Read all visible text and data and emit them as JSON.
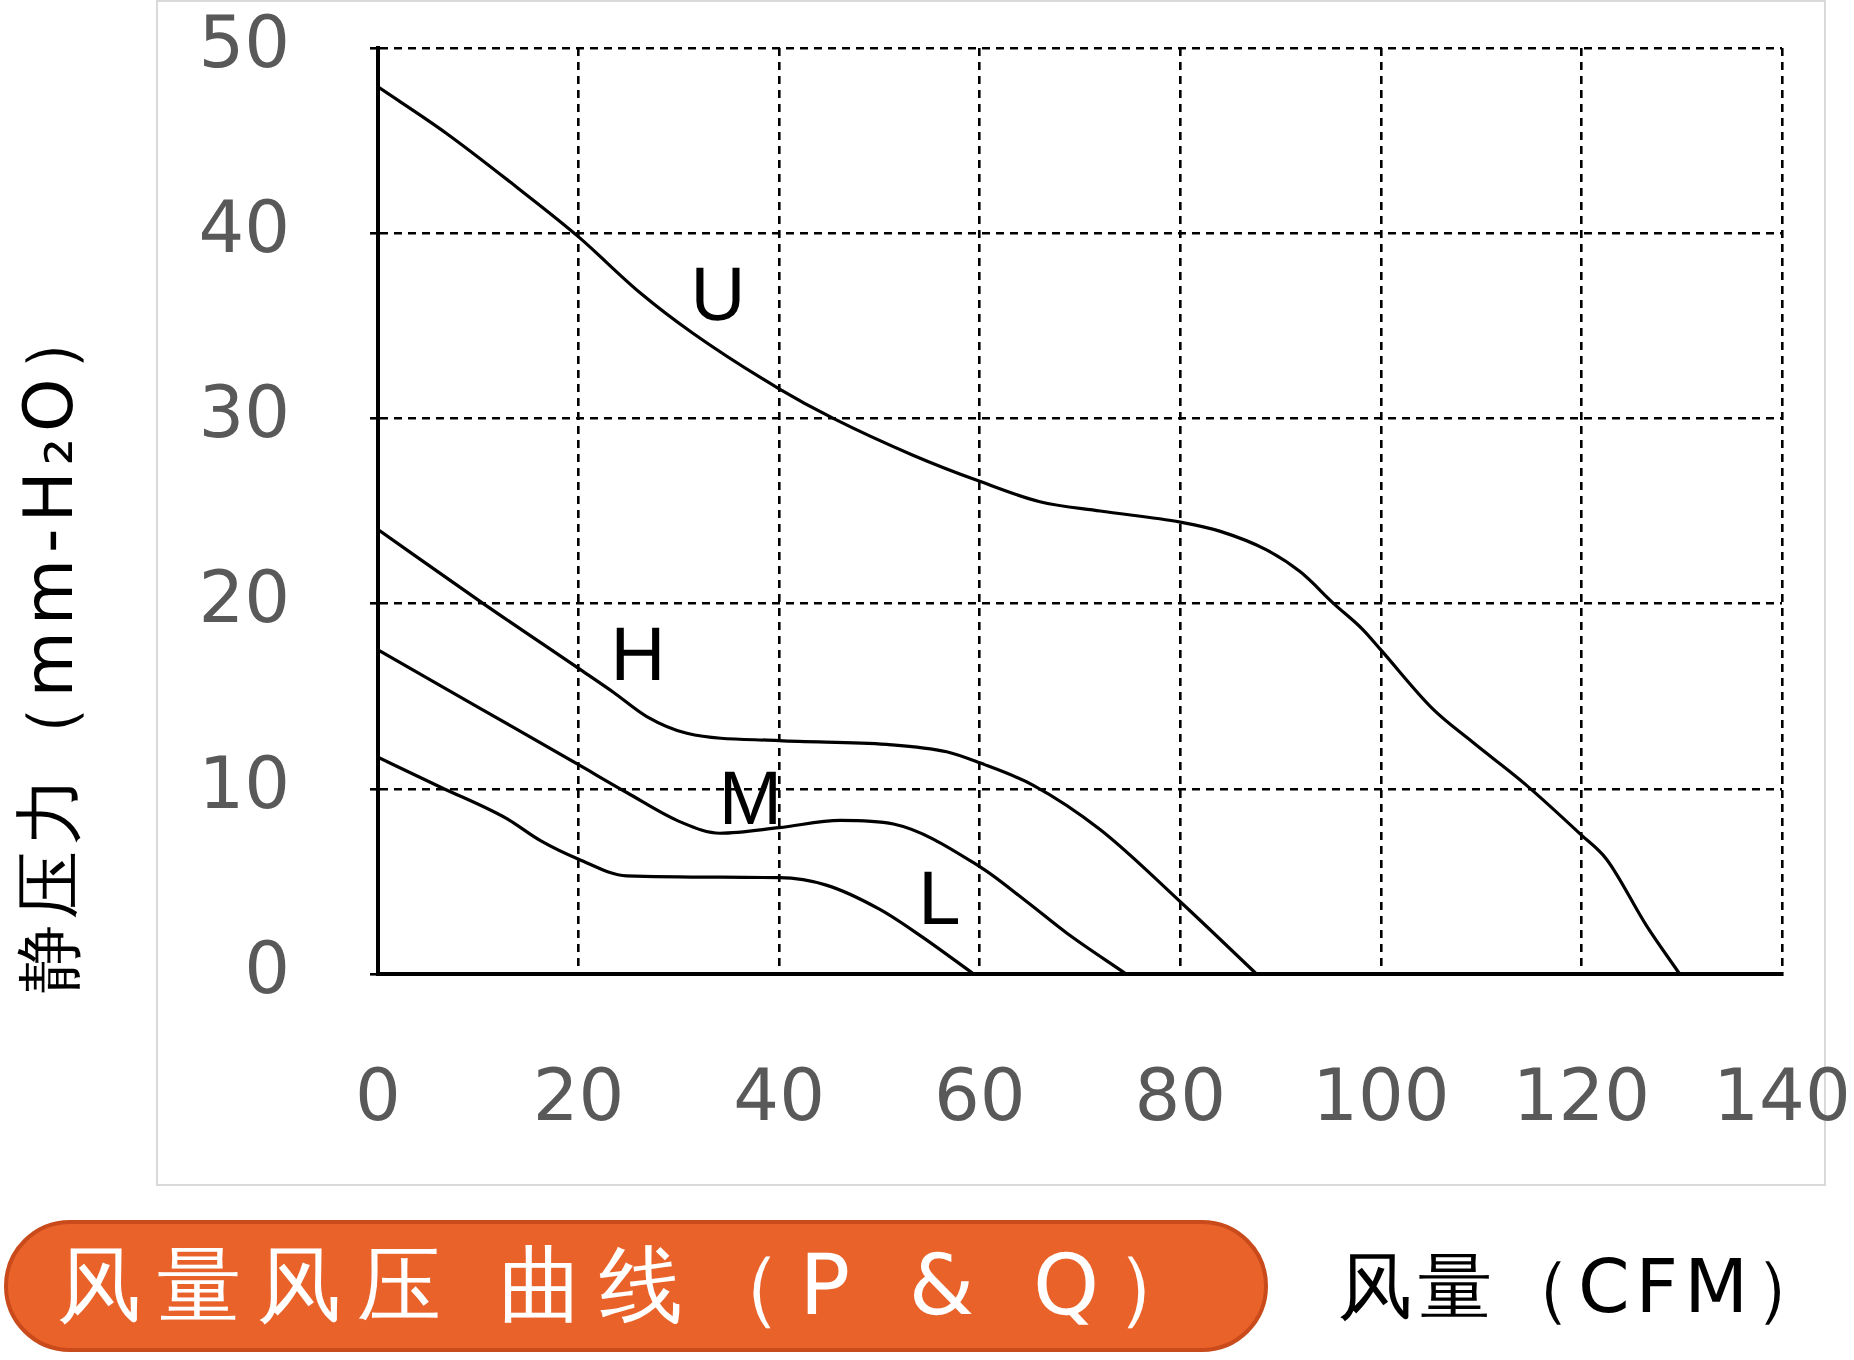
{
  "chart_data": {
    "type": "line",
    "title": "风量风压 曲线（P & Q）",
    "xlabel": "风量（CFM）",
    "ylabel": "静压力（mm-H₂O）",
    "xlim": [
      0,
      140
    ],
    "xticks": [
      0,
      20,
      40,
      60,
      80,
      100,
      120,
      140
    ],
    "ylim": [
      0,
      50
    ],
    "yticks": [
      0,
      10,
      20,
      30,
      40,
      50
    ],
    "grid": true,
    "legend": false,
    "marker": "none",
    "line_style": "solid",
    "series": [
      {
        "name": "U",
        "color": "#000000",
        "x": [
          0,
          6.8,
          14.5,
          20,
          26.1,
          31.4,
          40,
          45.4,
          53.4,
          60,
          66,
          72,
          80,
          84,
          88.6,
          92,
          95.3,
          98.2,
          100,
          105.2,
          109.2,
          114.5,
          120,
          122.5,
          126.5,
          129.8
        ],
        "values": [
          47.9,
          45.4,
          42.2,
          39.8,
          36.8,
          34.6,
          31.6,
          30,
          28,
          26.6,
          25.5,
          25,
          24.4,
          23.9,
          22.9,
          21.7,
          20,
          18.6,
          17.5,
          14.3,
          12.5,
          10.2,
          7.5,
          6.2,
          2.6,
          0
        ]
      },
      {
        "name": "H",
        "color": "#000000",
        "x": [
          0,
          10.5,
          20,
          23.5,
          26.8,
          30.8,
          40,
          50.7,
          56.7,
          60,
          65.3,
          72,
          80,
          87.6
        ],
        "values": [
          24,
          20,
          16.5,
          15.2,
          13.9,
          13,
          12.6,
          12.4,
          12,
          11.4,
          10.2,
          7.8,
          3.9,
          0
        ]
      },
      {
        "name": "M",
        "color": "#000000",
        "x": [
          0,
          10,
          20,
          24.8,
          30.2,
          34.1,
          40,
          46.1,
          51.4,
          60,
          64.7,
          68.7,
          74.6
        ],
        "values": [
          17.5,
          14.4,
          11.3,
          9.8,
          8.2,
          7.6,
          7.9,
          8.3,
          8.1,
          5.8,
          3.9,
          2.2,
          0
        ]
      },
      {
        "name": "L",
        "color": "#000000",
        "x": [
          0,
          6.2,
          12.8,
          16.2,
          20,
          24.8,
          40,
          44.7,
          50,
          54,
          59.4
        ],
        "values": [
          11.7,
          10.1,
          8.4,
          7.2,
          6.2,
          5.3,
          5.2,
          4.8,
          3.5,
          2.1,
          0
        ]
      }
    ]
  }
}
